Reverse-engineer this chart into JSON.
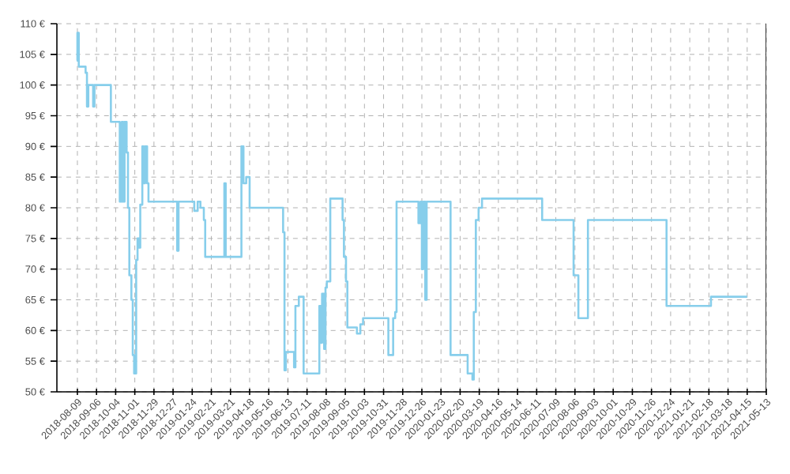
{
  "chart_data": {
    "type": "step",
    "color": "#87ceeb",
    "marker": "none",
    "grid": true,
    "xlim": [
      "2018-07-10",
      "2021-05-13"
    ],
    "xticks": [
      "2018-08-09",
      "2018-09-06",
      "2018-10-04",
      "2018-11-01",
      "2018-11-29",
      "2018-12-27",
      "2019-01-24",
      "2019-02-21",
      "2019-03-21",
      "2019-04-18",
      "2019-05-16",
      "2019-06-13",
      "2019-07-11",
      "2019-08-08",
      "2019-09-05",
      "2019-10-03",
      "2019-10-31",
      "2019-11-28",
      "2019-12-26",
      "2020-01-23",
      "2020-02-20",
      "2020-03-19",
      "2020-04-16",
      "2020-05-14",
      "2020-06-11",
      "2020-07-09",
      "2020-08-06",
      "2020-09-03",
      "2020-10-01",
      "2020-10-29",
      "2020-11-26",
      "2020-12-24",
      "2021-01-21",
      "2021-02-18",
      "2021-03-18",
      "2021-04-15",
      "2021-05-13"
    ],
    "ylim": [
      50,
      110
    ],
    "yticks": [
      {
        "value": 50,
        "label": "50 €"
      },
      {
        "value": 55,
        "label": "55 €"
      },
      {
        "value": 60,
        "label": "60 €"
      },
      {
        "value": 65,
        "label": "65 €"
      },
      {
        "value": 70,
        "label": "70 €"
      },
      {
        "value": 75,
        "label": "75 €"
      },
      {
        "value": 80,
        "label": "80 €"
      },
      {
        "value": 85,
        "label": "85 €"
      },
      {
        "value": 90,
        "label": "90 €"
      },
      {
        "value": 95,
        "label": "95 €"
      },
      {
        "value": 100,
        "label": "100 €"
      },
      {
        "value": 105,
        "label": "105 €"
      },
      {
        "value": 110,
        "label": "110 €"
      }
    ],
    "x": [
      "2018-08-08",
      "2018-08-09",
      "2018-08-11",
      "2018-08-21",
      "2018-08-23",
      "2018-08-25",
      "2018-09-01",
      "2018-09-03",
      "2018-09-27",
      "2018-10-10",
      "2018-10-13",
      "2018-10-15",
      "2018-10-17",
      "2018-10-20",
      "2018-10-22",
      "2018-10-24",
      "2018-10-27",
      "2018-10-29",
      "2018-10-31",
      "2018-11-03",
      "2018-11-05",
      "2018-11-07",
      "2018-11-09",
      "2018-11-12",
      "2018-11-14",
      "2018-11-16",
      "2018-11-19",
      "2018-11-21",
      "2019-01-02",
      "2019-01-04",
      "2019-01-27",
      "2019-02-01",
      "2019-02-05",
      "2019-02-10",
      "2019-02-12",
      "2019-03-12",
      "2019-03-14",
      "2019-04-06",
      "2019-04-09",
      "2019-04-13",
      "2019-04-18",
      "2019-06-06",
      "2019-06-08",
      "2019-06-10",
      "2019-06-22",
      "2019-06-24",
      "2019-06-29",
      "2019-07-06",
      "2019-07-29",
      "2019-07-31",
      "2019-08-02",
      "2019-08-05",
      "2019-08-07",
      "2019-08-09",
      "2019-08-14",
      "2019-09-01",
      "2019-09-03",
      "2019-09-06",
      "2019-09-08",
      "2019-09-22",
      "2019-09-27",
      "2019-10-01",
      "2019-11-07",
      "2019-11-14",
      "2019-11-17",
      "2019-11-19",
      "2019-12-21",
      "2019-12-24",
      "2019-12-26",
      "2019-12-28",
      "2019-12-31",
      "2020-01-02",
      "2020-02-06",
      "2020-03-02",
      "2020-03-09",
      "2020-03-11",
      "2020-03-14",
      "2020-03-18",
      "2020-03-23",
      "2020-06-19",
      "2020-08-04",
      "2020-08-11",
      "2020-08-25",
      "2020-12-18",
      "2021-02-21",
      "2021-04-15"
    ],
    "values": [
      104,
      108.5,
      103,
      102,
      96.5,
      100,
      96.5,
      100,
      94,
      81,
      94,
      81,
      94,
      89,
      80,
      69,
      65,
      56,
      53,
      71.5,
      75,
      73.5,
      80.5,
      90,
      84,
      90,
      84,
      81,
      73,
      81,
      79.5,
      81,
      80,
      78,
      72,
      84,
      72,
      90,
      84,
      85,
      80,
      76,
      53.5,
      56.5,
      54,
      64,
      65.5,
      53,
      64,
      58,
      66,
      57,
      67,
      68,
      81.5,
      78,
      72,
      68,
      60.5,
      59.5,
      61,
      62,
      56,
      62,
      63,
      81,
      77.5,
      81,
      70,
      81,
      65,
      81,
      56,
      53,
      52,
      63,
      78,
      80,
      81.5,
      78,
      69,
      62,
      78,
      64,
      65.5,
      65.5
    ]
  }
}
